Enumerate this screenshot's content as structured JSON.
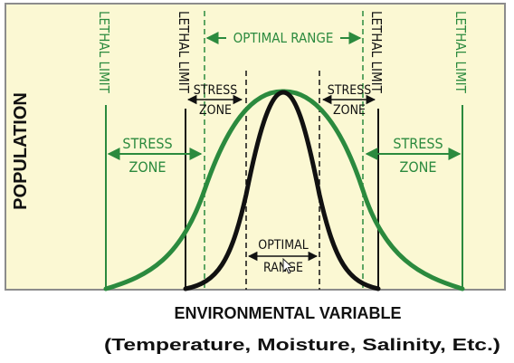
{
  "colors": {
    "background": "#ffffff",
    "panel": "#fbf8d3",
    "panel_border": "#8c8c8c",
    "wide_tolerance": "#2b8a3e",
    "narrow_tolerance": "#111111"
  },
  "labels": {
    "lethal_limit": "LETHAL LIMIT",
    "optimal_range": "OPTIMAL RANGE",
    "stress": "STRESS",
    "zone": "ZONE",
    "optimal": "OPTIMAL",
    "range": "RANGE"
  },
  "axes": {
    "y_label": "POPULATION",
    "x_label": "ENVIRONMENTAL VARIABLE",
    "x_sublabel": "(Temperature, Moisture, Salinity, Etc.)"
  },
  "curves": [
    {
      "name": "green-curve",
      "color": "#2b8a3e"
    },
    {
      "name": "black-curve",
      "color": "#111111"
    }
  ]
}
